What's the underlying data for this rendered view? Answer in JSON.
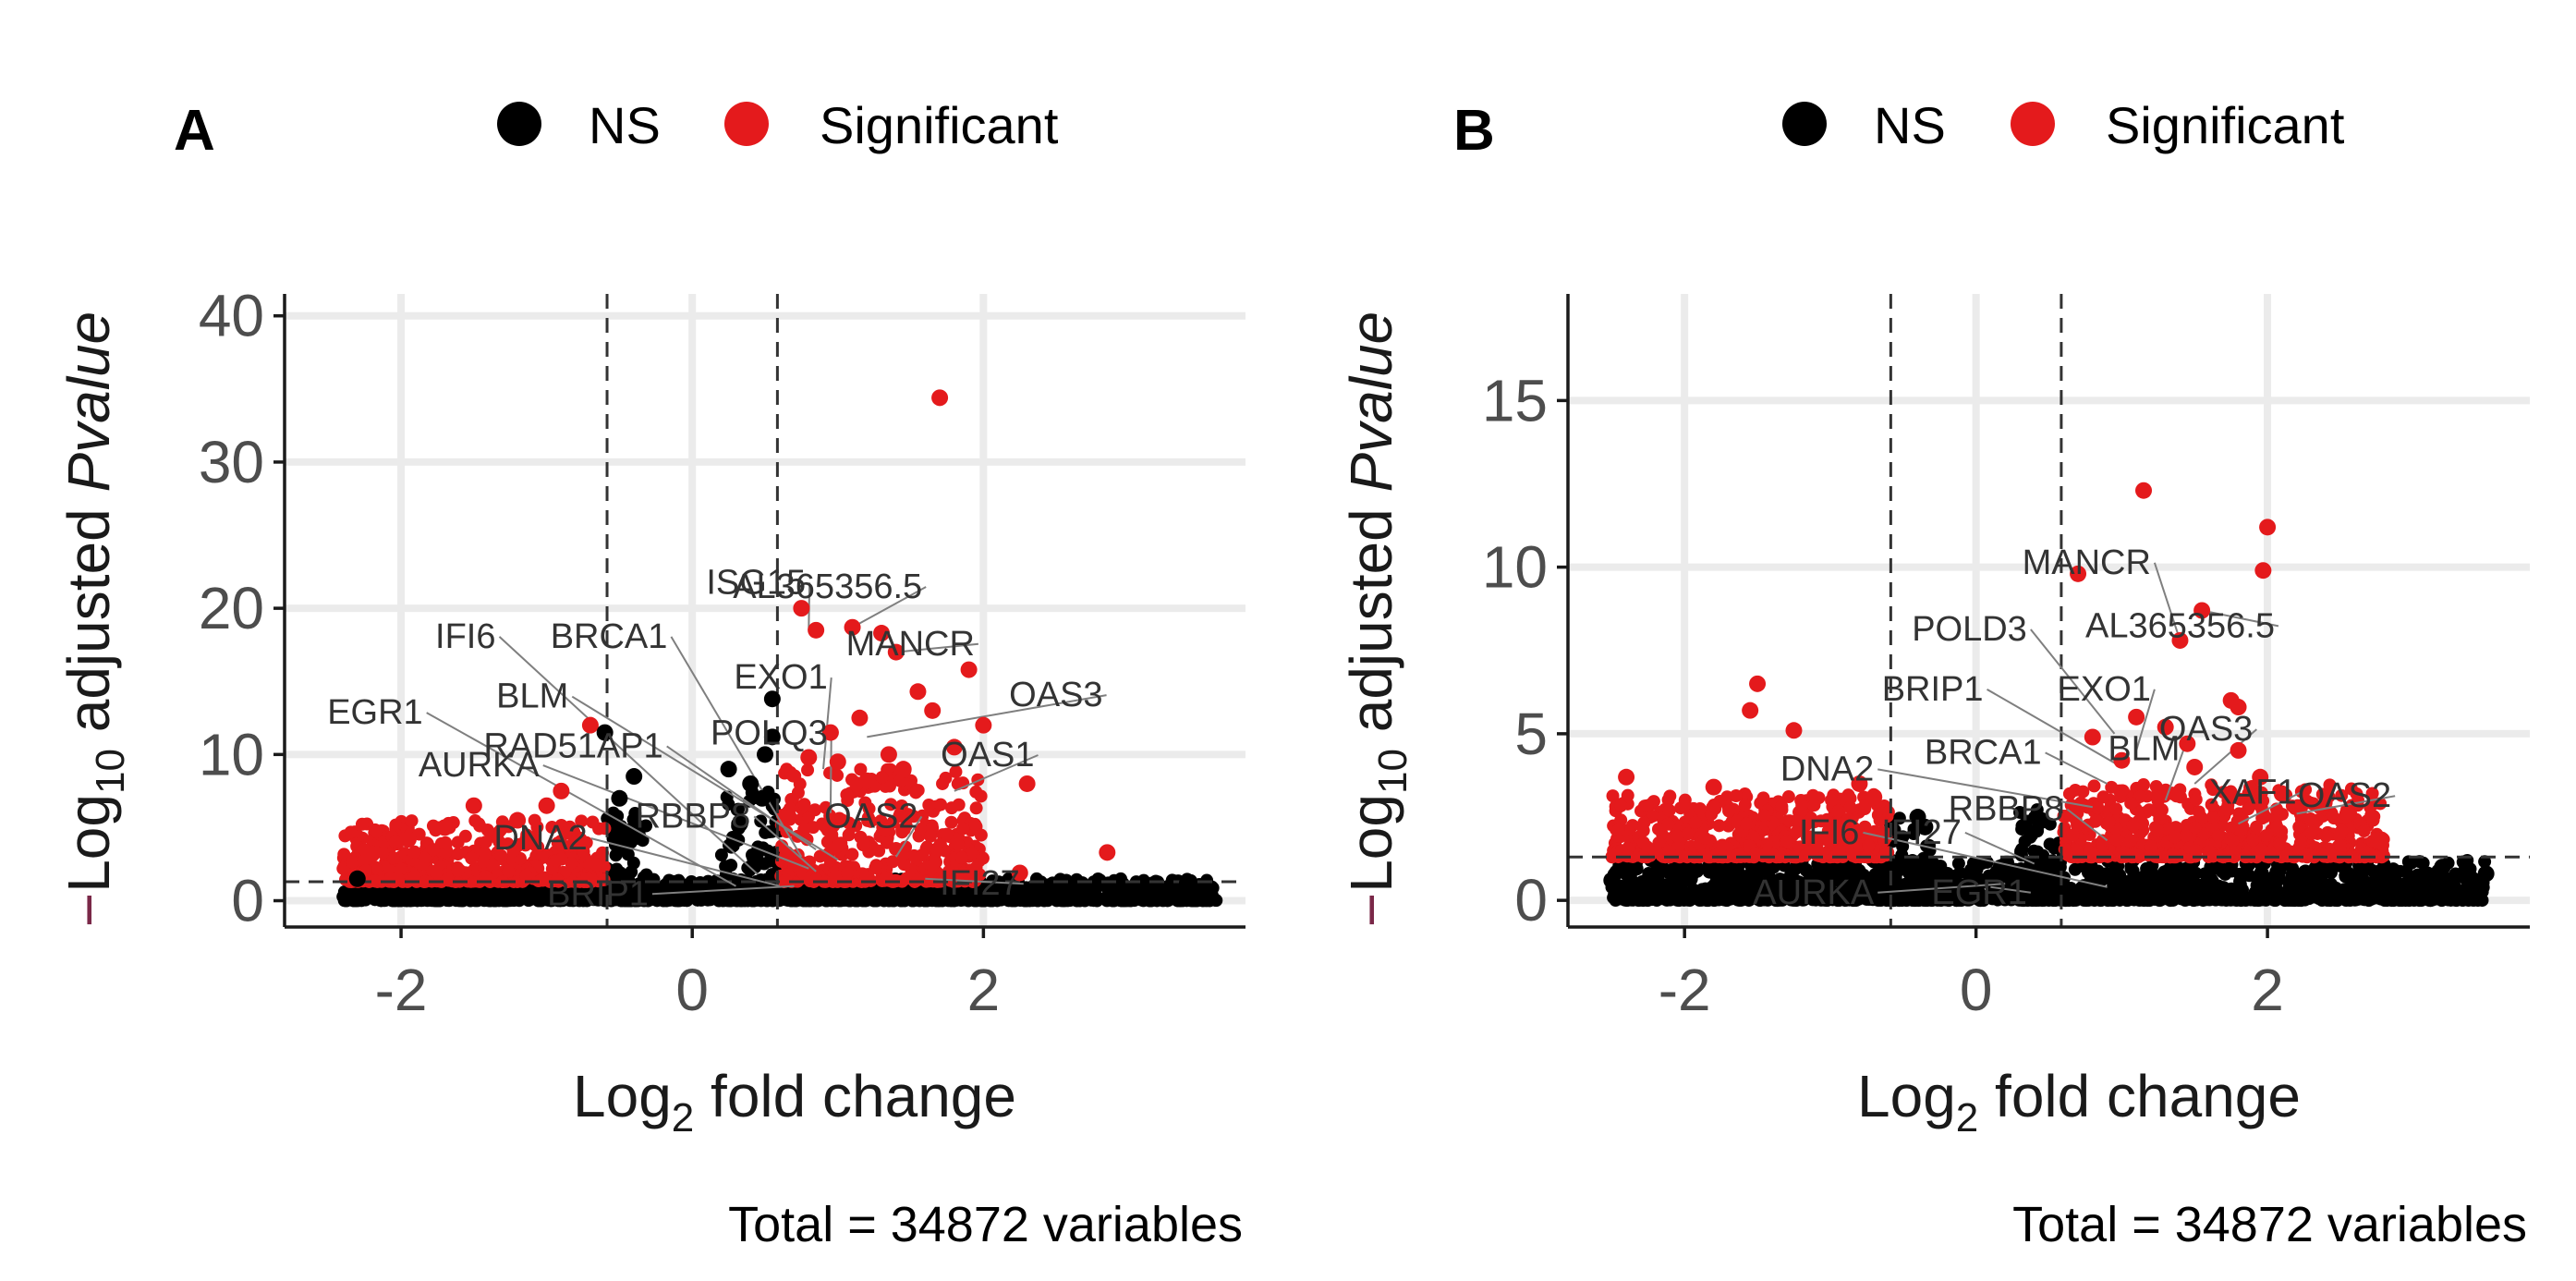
{
  "chart_data": [
    {
      "panel": "A",
      "type": "scatter",
      "legend": [
        "NS",
        "Significant"
      ],
      "colors": {
        "NS": "#000000",
        "Significant": "#e41a1c"
      },
      "xlabel": "Log2 fold change",
      "ylabel": "−Log10 adjusted Pvalue",
      "xticks": [
        -2,
        0,
        2
      ],
      "yticks": [
        0,
        10,
        20,
        30,
        40
      ],
      "xlim": [
        -2.8,
        3.8
      ],
      "ylim": [
        -1.8,
        41.5
      ],
      "fc_cutoff": [
        -0.585,
        0.585
      ],
      "p_cutoff": 1.3,
      "caption": "Total = 34872 variables",
      "ns_cloud": [
        {
          "x0": -2.4,
          "x1": 3.6,
          "ymax": 1.5
        },
        {
          "x0": -0.6,
          "x1": -0.3,
          "ymax": 6.5
        },
        {
          "x0": 0.2,
          "x1": 0.6,
          "ymax": 7.5
        }
      ],
      "sig_cloud": [
        {
          "x0": -2.4,
          "x1": -0.6,
          "ymax": 5.5
        },
        {
          "x0": 0.6,
          "x1": 2.0,
          "ymax": 9.0
        }
      ],
      "highlight": [
        {
          "x": 1.7,
          "y": 34.4,
          "sig": true
        },
        {
          "x": 0.75,
          "y": 20.0,
          "sig": true
        },
        {
          "x": 0.85,
          "y": 18.5,
          "sig": true
        },
        {
          "x": 1.1,
          "y": 18.7,
          "sig": true
        },
        {
          "x": 1.3,
          "y": 18.3,
          "sig": true
        },
        {
          "x": 1.4,
          "y": 17.0,
          "sig": true
        },
        {
          "x": 1.9,
          "y": 15.8,
          "sig": true
        },
        {
          "x": 1.55,
          "y": 14.3,
          "sig": true
        },
        {
          "x": 1.65,
          "y": 13.0,
          "sig": true
        },
        {
          "x": 2.0,
          "y": 12.0,
          "sig": true
        },
        {
          "x": 2.3,
          "y": 8.0,
          "sig": true
        },
        {
          "x": 2.85,
          "y": 3.3,
          "sig": true
        },
        {
          "x": 2.25,
          "y": 1.9,
          "sig": true
        },
        {
          "x": 0.95,
          "y": 11.5,
          "sig": true
        },
        {
          "x": 1.15,
          "y": 12.5,
          "sig": true
        },
        {
          "x": 0.8,
          "y": 9.8,
          "sig": true
        },
        {
          "x": 1.0,
          "y": 9.5,
          "sig": true
        },
        {
          "x": 1.45,
          "y": 9.0,
          "sig": true
        },
        {
          "x": 1.8,
          "y": 10.5,
          "sig": true
        },
        {
          "x": 1.35,
          "y": 10.0,
          "sig": true
        },
        {
          "x": 1.2,
          "y": 8.2,
          "sig": true
        },
        {
          "x": -0.7,
          "y": 12.0,
          "sig": true
        },
        {
          "x": -1.95,
          "y": 4.2,
          "sig": true
        },
        {
          "x": -1.5,
          "y": 6.5,
          "sig": true
        },
        {
          "x": -1.2,
          "y": 5.5,
          "sig": true
        },
        {
          "x": -2.2,
          "y": 3.2,
          "sig": true
        },
        {
          "x": -1.7,
          "y": 5.0,
          "sig": true
        },
        {
          "x": -1.0,
          "y": 6.5,
          "sig": true
        },
        {
          "x": -0.9,
          "y": 7.5,
          "sig": true
        },
        {
          "x": 0.55,
          "y": 13.8,
          "sig": false
        },
        {
          "x": 0.55,
          "y": 11.2,
          "sig": false
        },
        {
          "x": 0.5,
          "y": 10.0,
          "sig": false
        },
        {
          "x": -0.6,
          "y": 11.5,
          "sig": false
        },
        {
          "x": -0.4,
          "y": 8.5,
          "sig": false
        },
        {
          "x": 0.25,
          "y": 9.0,
          "sig": false
        },
        {
          "x": 0.4,
          "y": 8.0,
          "sig": false
        },
        {
          "x": 0.48,
          "y": 7.0,
          "sig": false
        },
        {
          "x": -0.5,
          "y": 7.0,
          "sig": false
        },
        {
          "x": -2.3,
          "y": 1.5,
          "sig": false
        },
        {
          "x": 3.4,
          "y": 1.2,
          "sig": false
        }
      ],
      "labels": [
        {
          "text": "ISG15",
          "tx": 0.78,
          "ty": 21.0,
          "px": 0.8,
          "py": 18.5
        },
        {
          "text": "AL365356.5",
          "tx": 1.58,
          "ty": 20.7,
          "px": 1.1,
          "py": 18.7
        },
        {
          "text": "MANCR",
          "tx": 1.94,
          "ty": 16.8,
          "px": 1.4,
          "py": 17.0
        },
        {
          "text": "OAS3",
          "tx": 2.82,
          "ty": 13.3,
          "px": 1.2,
          "py": 11.2
        },
        {
          "text": "OAS1",
          "tx": 2.35,
          "ty": 9.2,
          "px": 1.8,
          "py": 7.5
        },
        {
          "text": "EXO1",
          "tx": 0.93,
          "ty": 14.5,
          "px": 0.9,
          "py": 9.0
        },
        {
          "text": "POLQ3",
          "tx": 0.93,
          "ty": 10.7,
          "px": 0.95,
          "py": 6.0
        },
        {
          "text": "OAS2",
          "tx": 1.55,
          "ty": 5.0,
          "px": 1.4,
          "py": 3.0
        },
        {
          "text": "BRCA1",
          "tx": -0.17,
          "ty": 17.3,
          "px": 0.75,
          "py": 3.0
        },
        {
          "text": "IFI6",
          "tx": -1.35,
          "ty": 17.3,
          "px": 0.45,
          "py": 1.8
        },
        {
          "text": "BLM",
          "tx": -0.85,
          "ty": 13.2,
          "px": 1.0,
          "py": 2.8
        },
        {
          "text": "EGR1",
          "tx": -1.85,
          "ty": 12.1,
          "px": 0.3,
          "py": 1.0
        },
        {
          "text": "RAD51AP1",
          "tx": -0.2,
          "ty": 9.8,
          "px": 0.85,
          "py": 3.5
        },
        {
          "text": "AURKA",
          "tx": -1.05,
          "ty": 8.5,
          "px": 0.8,
          "py": 2.2
        },
        {
          "text": "RBBP8",
          "tx": 0.4,
          "ty": 5.0,
          "px": 0.85,
          "py": 2.0
        },
        {
          "text": "DNA2",
          "tx": -0.72,
          "ty": 3.5,
          "px": 0.6,
          "py": 1.0
        },
        {
          "text": "BRIP1",
          "tx": -0.3,
          "ty": -0.3,
          "px": 0.7,
          "py": 1.0
        },
        {
          "text": "IFI27",
          "tx": 2.25,
          "ty": 0.4,
          "px": 1.6,
          "py": 1.5
        }
      ]
    },
    {
      "panel": "B",
      "type": "scatter",
      "legend": [
        "NS",
        "Significant"
      ],
      "colors": {
        "NS": "#000000",
        "Significant": "#e41a1c"
      },
      "xlabel": "Log2 fold change",
      "ylabel": "−Log10 adjusted Pvalue",
      "xticks": [
        -2,
        0,
        2
      ],
      "yticks": [
        0,
        5,
        10,
        15
      ],
      "xlim": [
        -2.8,
        3.8
      ],
      "ylim": [
        -0.8,
        18.2
      ],
      "fc_cutoff": [
        -0.585,
        0.585
      ],
      "p_cutoff": 1.3,
      "caption": "Total = 34872 variables",
      "ns_cloud": [
        {
          "x0": -2.5,
          "x1": 3.5,
          "ymax": 1.2
        },
        {
          "x0": -0.6,
          "x1": -0.3,
          "ymax": 2.5
        },
        {
          "x0": 0.3,
          "x1": 0.6,
          "ymax": 2.8
        }
      ],
      "sig_cloud": [
        {
          "x0": -2.5,
          "x1": -0.6,
          "ymax": 3.2
        },
        {
          "x0": 0.6,
          "x1": 2.8,
          "ymax": 3.5
        }
      ],
      "highlight": [
        {
          "x": 1.15,
          "y": 12.3,
          "sig": true
        },
        {
          "x": 2.0,
          "y": 11.2,
          "sig": true
        },
        {
          "x": 1.97,
          "y": 9.9,
          "sig": true
        },
        {
          "x": 0.7,
          "y": 9.8,
          "sig": true
        },
        {
          "x": 1.55,
          "y": 8.7,
          "sig": true
        },
        {
          "x": 1.4,
          "y": 7.8,
          "sig": true
        },
        {
          "x": 1.75,
          "y": 6.0,
          "sig": true
        },
        {
          "x": 1.8,
          "y": 5.8,
          "sig": true
        },
        {
          "x": 1.1,
          "y": 5.5,
          "sig": true
        },
        {
          "x": 1.3,
          "y": 5.2,
          "sig": true
        },
        {
          "x": 0.8,
          "y": 4.9,
          "sig": true
        },
        {
          "x": 1.45,
          "y": 4.7,
          "sig": true
        },
        {
          "x": 1.0,
          "y": 4.2,
          "sig": true
        },
        {
          "x": 1.8,
          "y": 4.5,
          "sig": true
        },
        {
          "x": 1.95,
          "y": 3.7,
          "sig": true
        },
        {
          "x": 2.1,
          "y": 3.2,
          "sig": true
        },
        {
          "x": 2.55,
          "y": 2.6,
          "sig": true
        },
        {
          "x": 2.75,
          "y": 1.8,
          "sig": true
        },
        {
          "x": 1.5,
          "y": 4.0,
          "sig": true
        },
        {
          "x": -1.5,
          "y": 6.5,
          "sig": true
        },
        {
          "x": -1.55,
          "y": 5.7,
          "sig": true
        },
        {
          "x": -1.25,
          "y": 5.1,
          "sig": true
        },
        {
          "x": -2.4,
          "y": 3.7,
          "sig": true
        },
        {
          "x": -1.8,
          "y": 3.4,
          "sig": true
        },
        {
          "x": -0.8,
          "y": 3.5,
          "sig": true
        },
        {
          "x": -0.7,
          "y": 3.1,
          "sig": true
        },
        {
          "x": -0.4,
          "y": 2.5,
          "sig": false
        },
        {
          "x": -0.35,
          "y": 2.2,
          "sig": false
        },
        {
          "x": 0.45,
          "y": 2.4,
          "sig": false
        },
        {
          "x": 3.5,
          "y": 0.8,
          "sig": false
        },
        {
          "x": 3.2,
          "y": 1.0,
          "sig": false
        },
        {
          "x": -2.5,
          "y": 0.6,
          "sig": false
        }
      ],
      "labels": [
        {
          "text": "MANCR",
          "tx": 1.2,
          "ty": 9.8,
          "px": 1.4,
          "py": 7.8
        },
        {
          "text": "AL365356.5",
          "tx": 2.05,
          "ty": 7.9,
          "px": 1.55,
          "py": 8.7
        },
        {
          "text": "POLD3",
          "tx": 0.35,
          "ty": 7.8,
          "px": 0.95,
          "py": 5.0
        },
        {
          "text": "BRIP1",
          "tx": 0.05,
          "ty": 6.0,
          "px": 1.0,
          "py": 4.0
        },
        {
          "text": "EXO1",
          "tx": 1.2,
          "ty": 6.0,
          "px": 1.1,
          "py": 4.5
        },
        {
          "text": "OAS3",
          "tx": 1.9,
          "ty": 4.8,
          "px": 1.5,
          "py": 3.5
        },
        {
          "text": "BRCA1",
          "tx": 0.45,
          "ty": 4.1,
          "px": 0.9,
          "py": 3.5
        },
        {
          "text": "BLM",
          "tx": 1.4,
          "ty": 4.2,
          "px": 1.3,
          "py": 3.0
        },
        {
          "text": "DNA2",
          "tx": -0.7,
          "ty": 3.6,
          "px": 0.8,
          "py": 2.8
        },
        {
          "text": "RBBP8",
          "tx": 0.6,
          "ty": 2.4,
          "px": 0.9,
          "py": 1.8
        },
        {
          "text": "XAF1",
          "tx": 2.2,
          "ty": 2.9,
          "px": 1.8,
          "py": 2.3
        },
        {
          "text": "OAS2",
          "tx": 2.85,
          "ty": 2.8,
          "px": 2.2,
          "py": 2.6
        },
        {
          "text": "IFI6",
          "tx": -0.8,
          "ty": 1.7,
          "px": 0.9,
          "py": 0.4
        },
        {
          "text": "IFI27",
          "tx": -0.1,
          "ty": 1.7,
          "px": 0.4,
          "py": 1.1
        },
        {
          "text": "AURKA",
          "tx": -0.7,
          "ty": -0.1,
          "px": 0.2,
          "py": 0.5
        },
        {
          "text": "EGR1",
          "tx": 0.35,
          "ty": -0.1,
          "px": 0.1,
          "py": 0.4
        }
      ]
    }
  ]
}
